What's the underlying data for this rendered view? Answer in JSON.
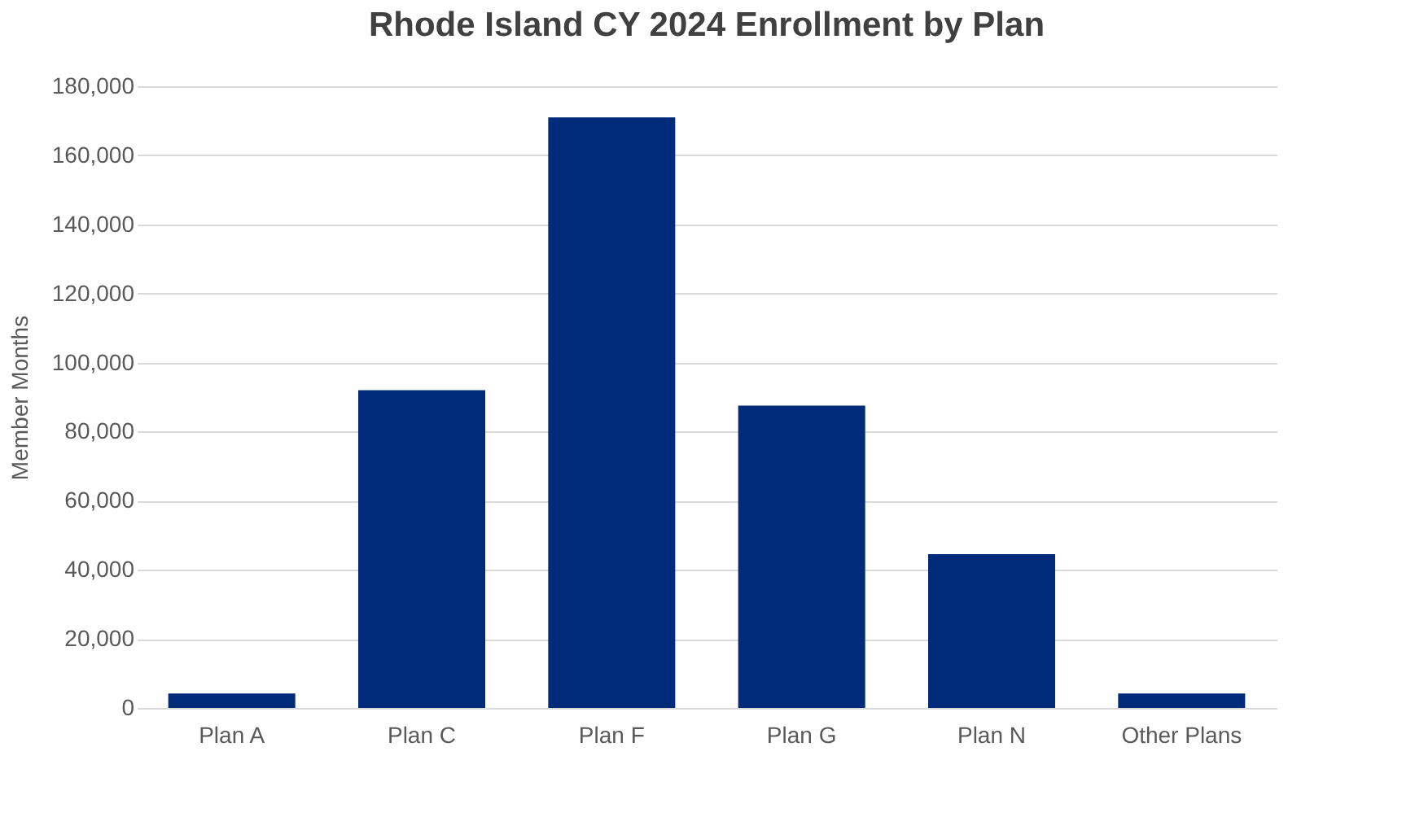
{
  "chart_data": {
    "type": "bar",
    "title": "Rhode Island CY 2024 Enrollment by Plan",
    "ylabel": "Member Months",
    "categories": [
      "Plan A",
      "Plan C",
      "Plan F",
      "Plan G",
      "Plan N",
      "Other Plans"
    ],
    "values": [
      4200,
      92000,
      171000,
      87500,
      44500,
      4200
    ],
    "color": "#002b7a",
    "ylim": [
      0,
      180000
    ],
    "yticks": [
      0,
      {
        "value": 20000,
        "label": "20,000"
      },
      {
        "value": 40000,
        "label": "40,000"
      },
      {
        "value": 60000,
        "label": "60,000"
      },
      {
        "value": 80000,
        "label": "80,000"
      },
      {
        "value": 100000,
        "label": "100,000"
      },
      {
        "value": 120000,
        "label": "120,000"
      },
      {
        "value": 140000,
        "label": "140,000"
      },
      {
        "value": 160000,
        "label": "160,000"
      },
      {
        "value": 180000,
        "label": "180,000"
      }
    ],
    "grid": "y"
  }
}
